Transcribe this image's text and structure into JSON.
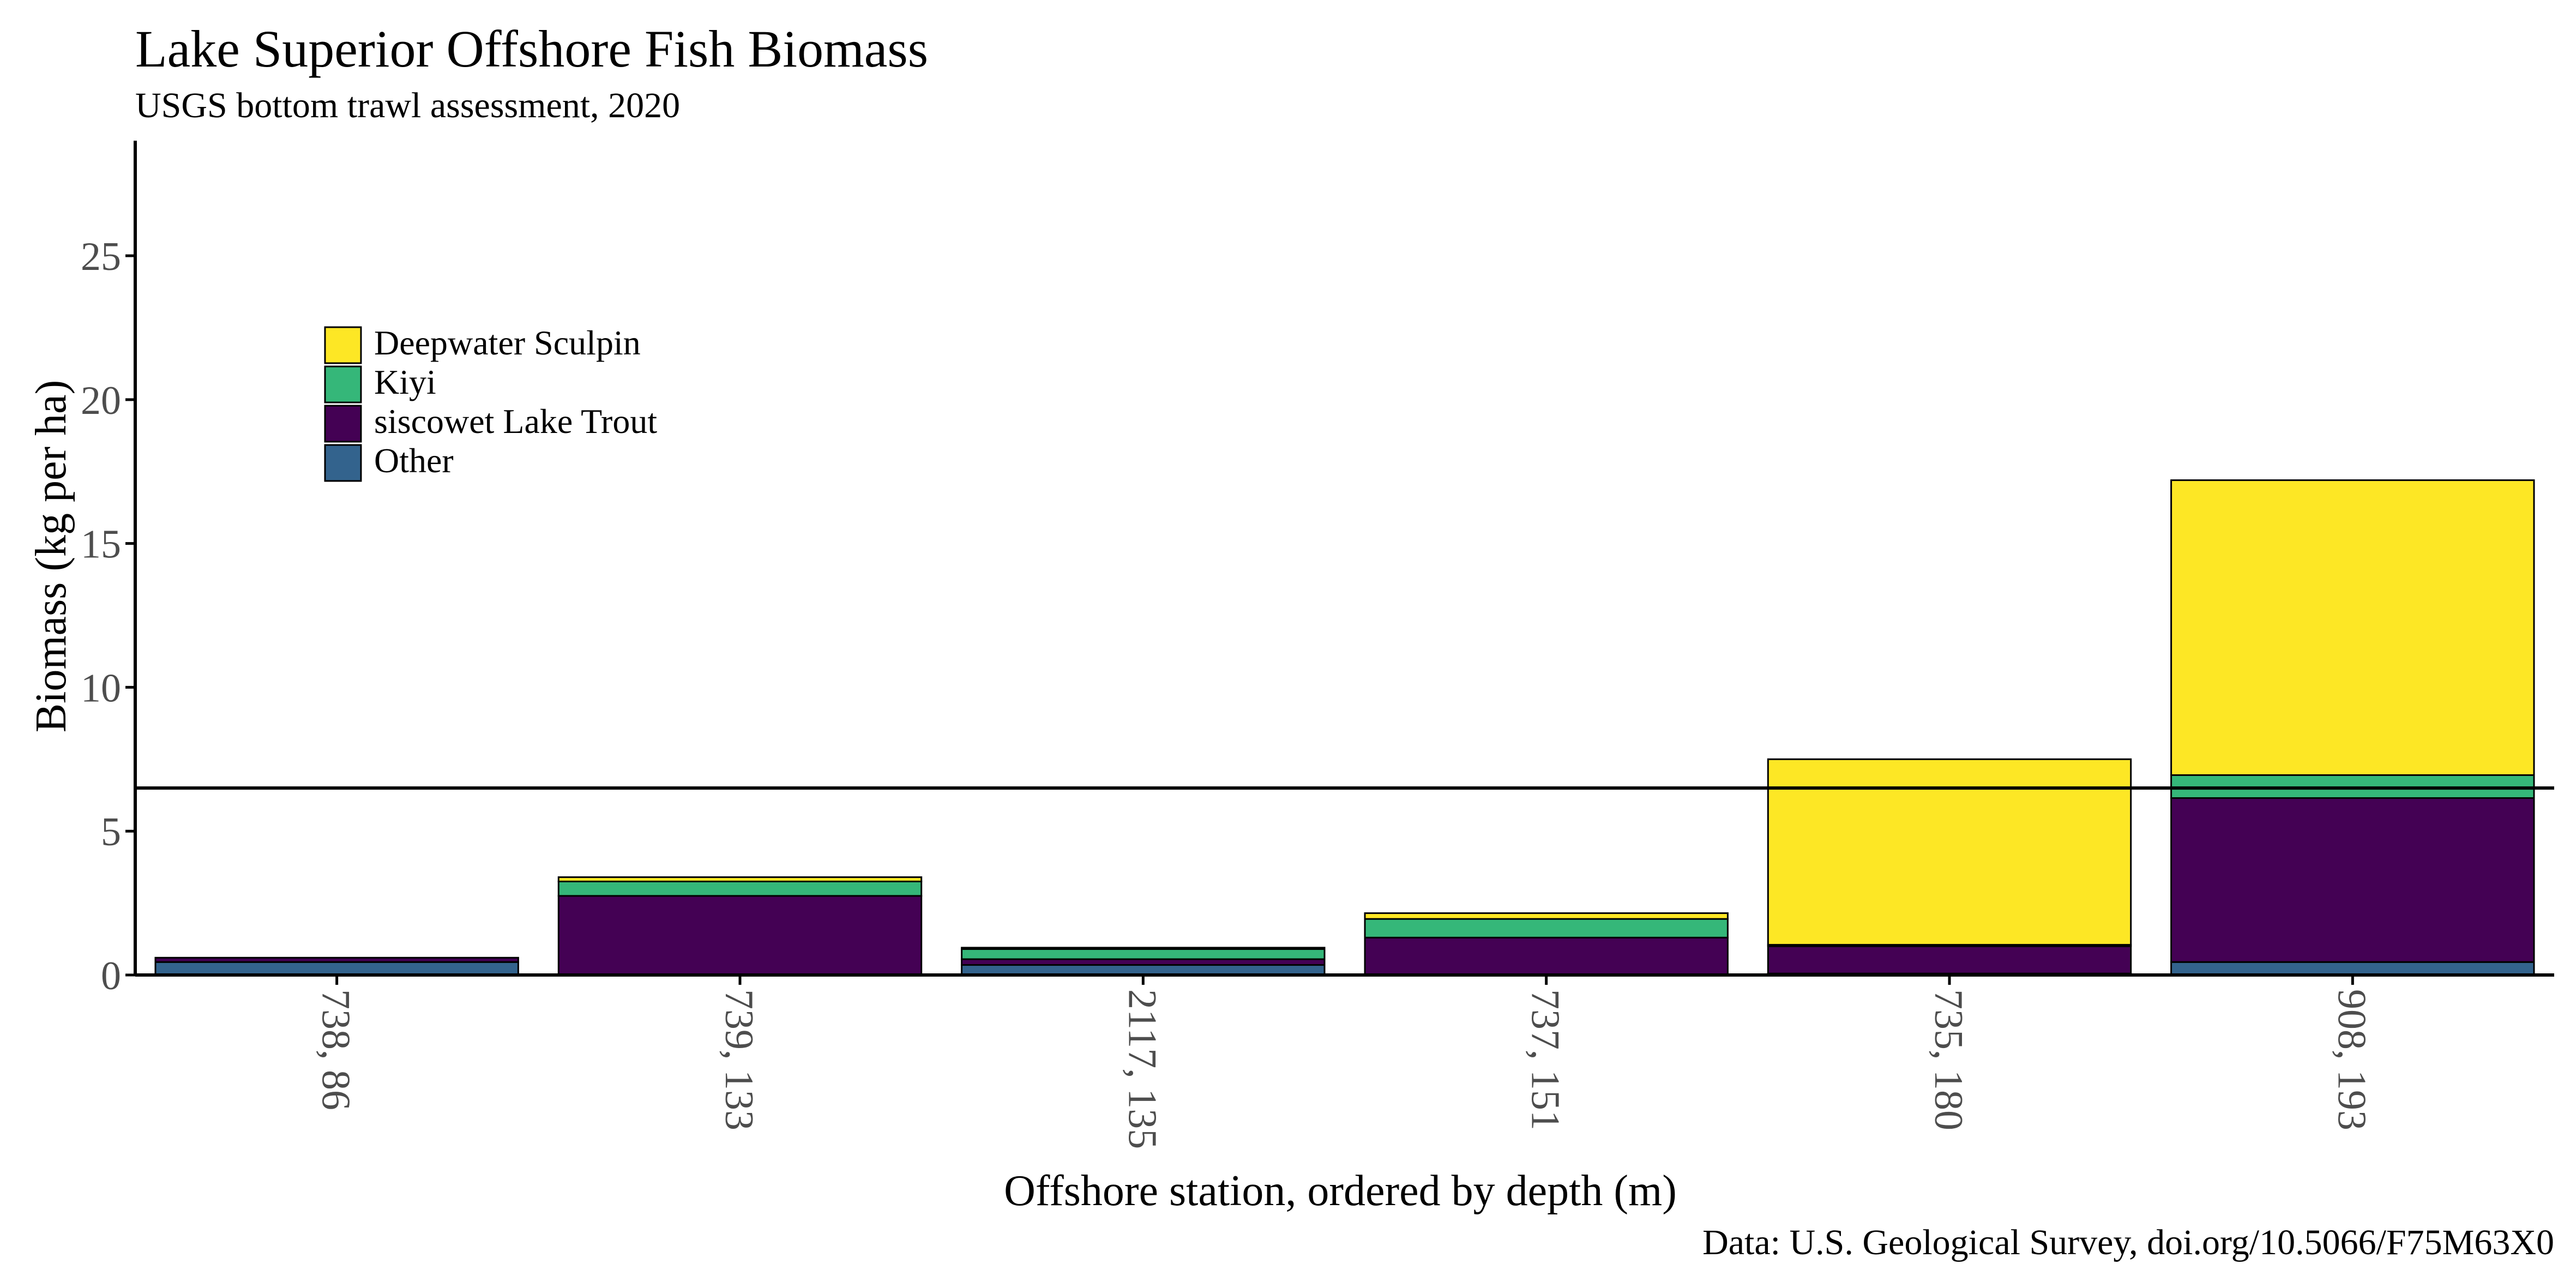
{
  "chart_data": {
    "type": "bar",
    "stacked": true,
    "title": "Lake Superior Offshore Fish Biomass",
    "subtitle": "USGS bottom trawl assessment,  2020",
    "xlabel": "Offshore station, ordered by depth (m)",
    "ylabel": "Biomass (kg per ha)",
    "caption": "Data: U.S. Geological Survey, doi.org/10.5066/F75M63X0",
    "categories": [
      "738, 86",
      "739, 133",
      "2117, 135",
      "737, 151",
      "735, 180",
      "908, 193"
    ],
    "ylim": [
      0,
      29
    ],
    "yticks": [
      0,
      5,
      10,
      15,
      20,
      25
    ],
    "reference_line": 6.5,
    "grid": false,
    "legend_position": "top-left",
    "series": [
      {
        "name": "Other",
        "color": "#33638D",
        "values": [
          0.45,
          0.0,
          0.35,
          0.0,
          0.05,
          0.45
        ]
      },
      {
        "name": "siscowet Lake Trout",
        "color": "#440154",
        "values": [
          0.15,
          2.75,
          0.2,
          1.3,
          0.95,
          5.7
        ]
      },
      {
        "name": "Kiyi",
        "color": "#35B779",
        "values": [
          0.0,
          0.5,
          0.35,
          0.65,
          0.05,
          0.8
        ]
      },
      {
        "name": "Deepwater Sculpin",
        "color": "#FDE725",
        "values": [
          0.0,
          0.15,
          0.05,
          0.2,
          6.45,
          10.25
        ]
      }
    ],
    "legend_order": [
      "Deepwater Sculpin",
      "Kiyi",
      "siscowet Lake Trout",
      "Other"
    ]
  }
}
